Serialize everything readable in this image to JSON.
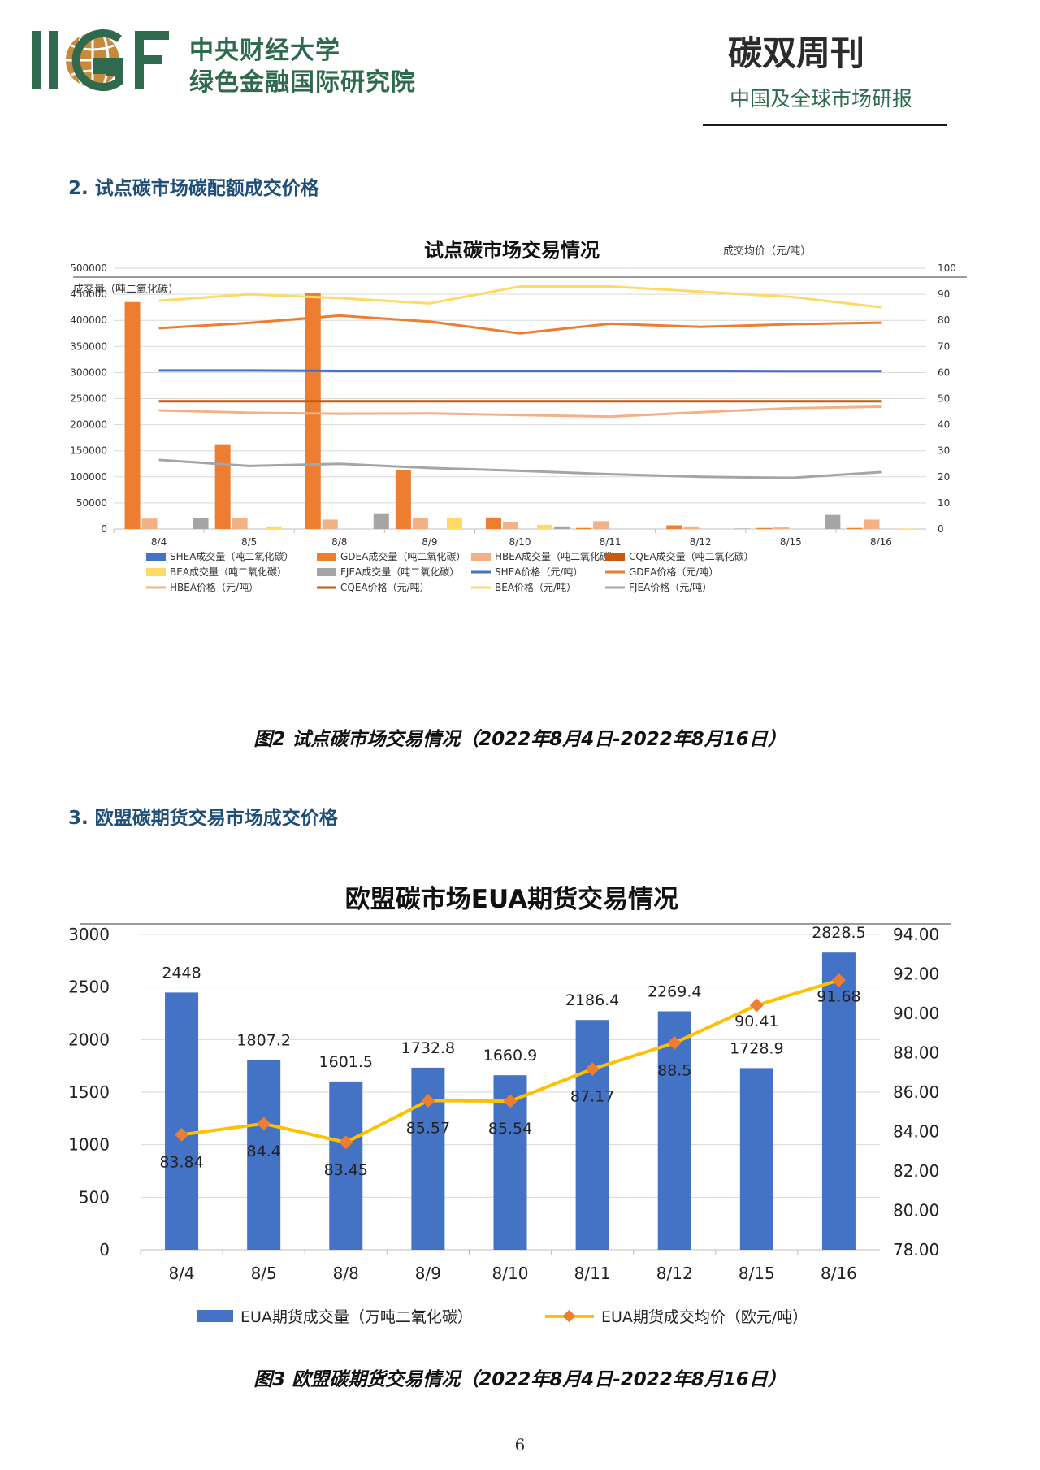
{
  "header": {
    "logo_text": "IIGF",
    "org_name_line1": "中央财经大学",
    "org_name_line2": "绿色金融国际研究院",
    "publication_title": "碳双周刊",
    "publication_subtitle": "中国及全球市场研报"
  },
  "sections": {
    "s2_heading": "2. 试点碳市场碳配额成交价格",
    "s3_heading": "3. 欧盟碳期货交易市场成交价格",
    "fig2_caption": "图2 试点碳市场交易情况（2022年8月4日-2022年8月16日）",
    "fig3_caption": "图3 欧盟碳期货交易情况（2022年8月4日-2022年8月16日）"
  },
  "page_number": "6",
  "colors": {
    "brand_green": "#2f6a4f",
    "heading_blue": "#1f4e79",
    "SHEA": "#4472c4",
    "GDEA": "#ed7d31",
    "HBEA": "#f4b183",
    "CQEA": "#c55a11",
    "BEA": "#ffd966",
    "FJEA": "#a5a5a5",
    "EUA_bar": "#4472c4",
    "EUA_line": "#ffc000",
    "EUA_marker": "#ed7d31"
  },
  "chart_data": [
    {
      "type": "bar",
      "title": "试点碳市场交易情况",
      "left_axis_label": "成交量（吨二氧化碳）",
      "right_axis_label": "成交均价（元/吨）",
      "ylim": [
        0,
        500000
      ],
      "y2lim": [
        0,
        100
      ],
      "y_ticks": [
        "0",
        "50000",
        "100000",
        "150000",
        "200000",
        "250000",
        "300000",
        "350000",
        "400000",
        "450000",
        "500000"
      ],
      "y2_ticks": [
        "0",
        "10",
        "20",
        "30",
        "40",
        "50",
        "60",
        "70",
        "80",
        "90",
        "100"
      ],
      "categories": [
        "8/4",
        "8/5",
        "8/8",
        "8/9",
        "8/10",
        "8/11",
        "8/12",
        "8/15",
        "8/16"
      ],
      "grid": true,
      "legend_position": "bottom",
      "bar_series": [
        {
          "key": "SHEA",
          "name": "SHEA成交量（吨二氧化碳）",
          "values": [
            0,
            0,
            0,
            0,
            0,
            0,
            0,
            0,
            0
          ]
        },
        {
          "key": "GDEA",
          "name": "GDEA成交量（吨二氧化碳）",
          "values": [
            435000,
            161000,
            453000,
            113000,
            22000,
            2000,
            7000,
            2000,
            2000
          ]
        },
        {
          "key": "HBEA",
          "name": "HBEA成交量（吨二氧化碳）",
          "values": [
            20000,
            21000,
            18000,
            21000,
            14000,
            15000,
            5000,
            3000,
            18000
          ]
        },
        {
          "key": "CQEA",
          "name": "CQEA成交量（吨二氧化碳）",
          "values": [
            0,
            0,
            0,
            0,
            0,
            0,
            0,
            0,
            0
          ]
        },
        {
          "key": "BEA",
          "name": "BEA成交量（吨二氧化碳）",
          "values": [
            0,
            5000,
            0,
            22000,
            8000,
            0,
            0,
            0,
            1000
          ]
        },
        {
          "key": "FJEA",
          "name": "FJEA成交量（吨二氧化碳）",
          "values": [
            21000,
            0,
            30000,
            0,
            5000,
            0,
            1000,
            27000,
            0
          ]
        }
      ],
      "line_series": [
        {
          "key": "SHEA",
          "name": "SHEA价格（元/吨）",
          "values": [
            60.8,
            60.8,
            60.6,
            60.6,
            60.6,
            60.6,
            60.6,
            60.5,
            60.5
          ]
        },
        {
          "key": "GDEA",
          "name": "GDEA价格（元/吨）",
          "values": [
            77.0,
            79.0,
            81.8,
            79.5,
            75.0,
            78.7,
            77.5,
            78.5,
            79.1
          ]
        },
        {
          "key": "HBEA",
          "name": "HBEA价格（元/吨）",
          "values": [
            45.5,
            44.6,
            44.2,
            44.3,
            43.7,
            43.1,
            44.8,
            46.3,
            46.9
          ]
        },
        {
          "key": "CQEA",
          "name": "CQEA价格（元/吨）",
          "values": [
            49.0,
            49.0,
            49.0,
            49.0,
            49.0,
            49.0,
            49.0,
            49.0,
            49.0
          ]
        },
        {
          "key": "BEA",
          "name": "BEA价格（元/吨）",
          "values": [
            87.5,
            90.0,
            88.5,
            86.5,
            93.0,
            93.0,
            91.0,
            89.0,
            85.0
          ]
        },
        {
          "key": "FJEA",
          "name": "FJEA价格（元/吨）",
          "values": [
            26.5,
            24.2,
            25.0,
            23.4,
            22.3,
            21.0,
            20.0,
            19.6,
            21.8
          ]
        }
      ],
      "legend": [
        [
          "SHEA成交量（吨二氧化碳）",
          "GDEA成交量（吨二氧化碳）",
          "HBEA成交量（吨二氧化碳）",
          "CQEA成交量（吨二氧化碳）"
        ],
        [
          "BEA成交量（吨二氧化碳）",
          "FJEA成交量（吨二氧化碳）",
          "SHEA价格（元/吨）",
          "GDEA价格（元/吨）"
        ],
        [
          "HBEA价格（元/吨）",
          "CQEA价格（元/吨）",
          "BEA价格（元/吨）",
          "FJEA价格（元/吨）"
        ]
      ]
    },
    {
      "type": "bar",
      "title": "欧盟碳市场EUA期货交易情况",
      "ylim": [
        0,
        3000
      ],
      "y2lim": [
        78,
        94
      ],
      "y_ticks": [
        "0",
        "500",
        "1000",
        "1500",
        "2000",
        "2500",
        "3000"
      ],
      "y2_ticks": [
        "78.00",
        "80.00",
        "82.00",
        "84.00",
        "86.00",
        "88.00",
        "90.00",
        "92.00",
        "94.00"
      ],
      "categories": [
        "8/4",
        "8/5",
        "8/8",
        "8/9",
        "8/10",
        "8/11",
        "8/12",
        "8/15",
        "8/16"
      ],
      "grid": true,
      "legend_position": "bottom",
      "series": [
        {
          "name": "EUA期货成交量（万吨二氧化碳）",
          "type": "bar",
          "axis": "left",
          "values": [
            2448,
            1807.2,
            1601.5,
            1732.8,
            1660.9,
            2186.4,
            2269.4,
            1728.9,
            2828.5
          ],
          "labels": [
            "2448",
            "1807.2",
            "1601.5",
            "1732.8",
            "1660.9",
            "2186.4",
            "2269.4",
            "1728.9",
            "2828.5"
          ]
        },
        {
          "name": "EUA期货成交均价（欧元/吨）",
          "type": "line",
          "axis": "right",
          "values": [
            83.84,
            84.4,
            83.45,
            85.57,
            85.54,
            87.17,
            88.5,
            90.41,
            91.68
          ],
          "labels": [
            "83.84",
            "84.4",
            "83.45",
            "85.57",
            "85.54",
            "87.17",
            "88.5",
            "90.41",
            "91.68"
          ]
        }
      ]
    }
  ]
}
